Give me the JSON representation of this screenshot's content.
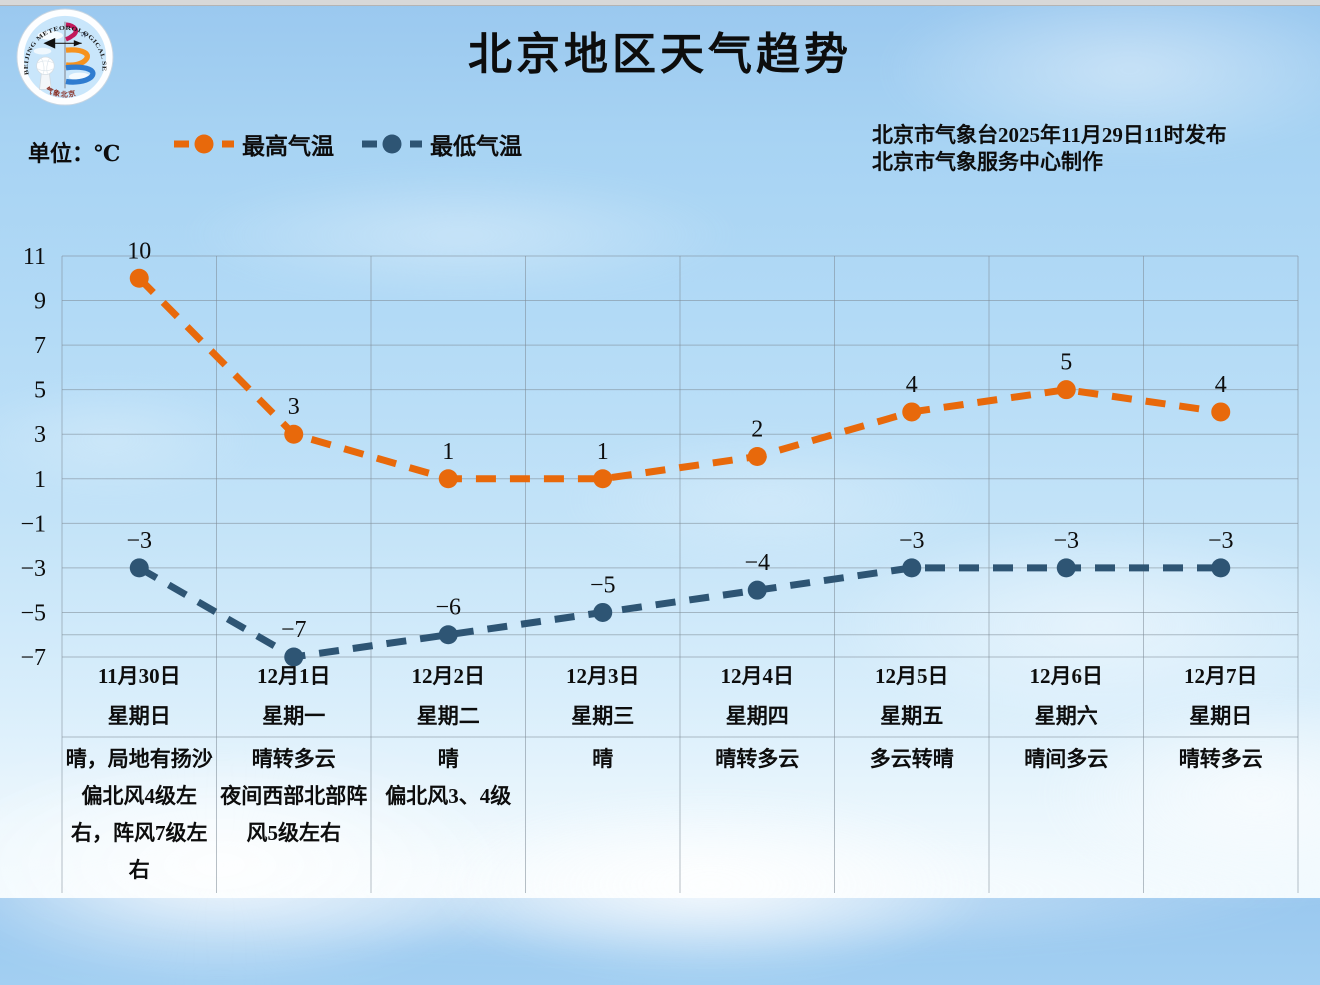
{
  "header": {
    "title": "北京地区天气趋势",
    "unit_label": "单位：℃",
    "issued_line1": "北京市气象台2025年11月29日11时发布",
    "issued_line2": "北京市气象服务中心制作",
    "logo_arc_text": "BEIJING METEOROLOGICAL SERVICE",
    "logo_bottom_text": "气象北京"
  },
  "legend": {
    "items": [
      {
        "label": "最高气温",
        "icon": "orange-dashed-line-with-dot",
        "color": "#E8690B"
      },
      {
        "label": "最低气温",
        "icon": "blue-dashed-line-with-dot",
        "color": "#2E5574"
      }
    ]
  },
  "colors": {
    "high_series": "#E8690B",
    "low_series": "#2E5574",
    "grid": "#8d99a4",
    "text": "#0d0d0d"
  },
  "chart_data": {
    "type": "line",
    "title": "北京地区天气趋势",
    "unit": "℃",
    "grid": true,
    "legend_position": "top",
    "ylim": [
      -7,
      11
    ],
    "y_ticks": [
      11,
      9,
      7,
      5,
      3,
      1,
      -1,
      -3,
      -5,
      -7
    ],
    "categories": [
      "11月30日",
      "12月1日",
      "12月2日",
      "12月3日",
      "12月4日",
      "12月5日",
      "12月6日",
      "12月7日"
    ],
    "weekdays": [
      "星期日",
      "星期一",
      "星期二",
      "星期三",
      "星期四",
      "星期五",
      "星期六",
      "星期日"
    ],
    "weather": [
      [
        "晴，局地有扬沙",
        "偏北风4级左右，阵风7级左右"
      ],
      [
        "晴转多云",
        "夜间西部北部阵风5级左右"
      ],
      [
        "晴",
        "偏北风3、4级"
      ],
      [
        "晴"
      ],
      [
        "晴转多云"
      ],
      [
        "多云转晴"
      ],
      [
        "晴间多云"
      ],
      [
        "晴转多云"
      ]
    ],
    "series": [
      {
        "name": "最高气温",
        "color": "#E8690B",
        "values": [
          10,
          3,
          1,
          1,
          2,
          4,
          5,
          4
        ]
      },
      {
        "name": "最低气温",
        "color": "#2E5574",
        "values": [
          -3,
          -7,
          -6,
          -5,
          -4,
          -3,
          -3,
          -3
        ]
      }
    ]
  }
}
